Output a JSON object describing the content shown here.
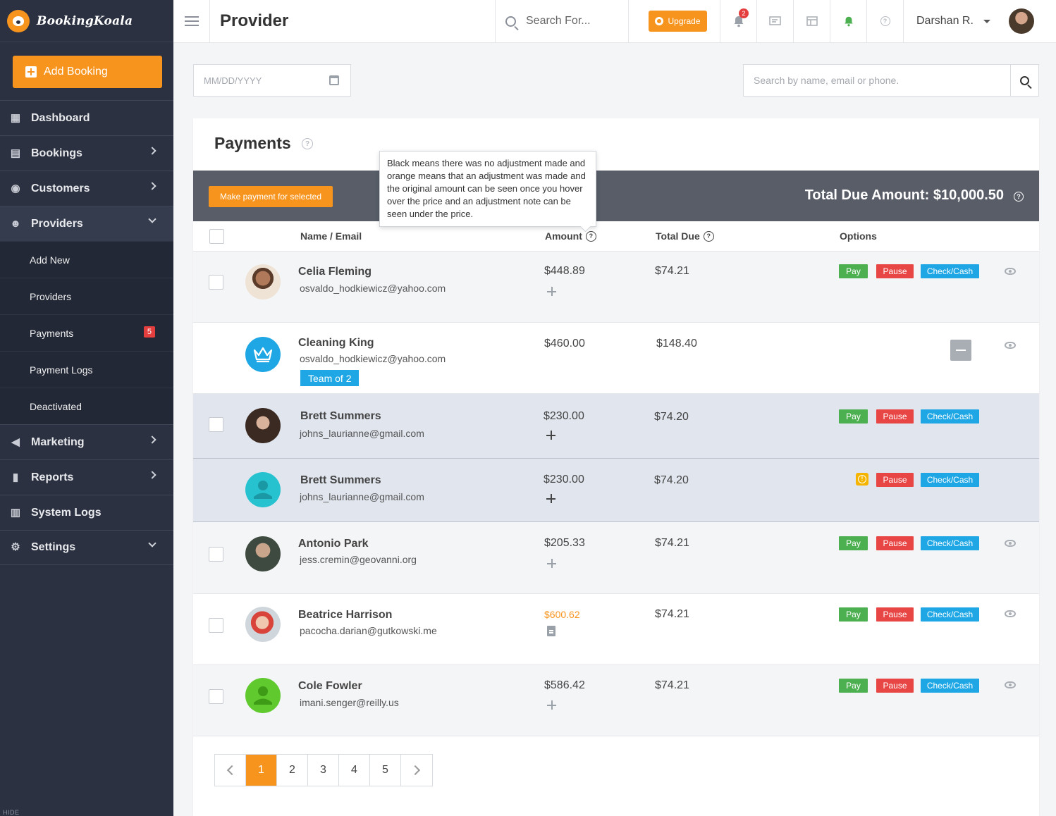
{
  "brand": {
    "name": "BookingKoala"
  },
  "sidebar": {
    "add_booking": "Add Booking",
    "items": [
      {
        "label": "Dashboard"
      },
      {
        "label": "Bookings"
      },
      {
        "label": "Customers"
      },
      {
        "label": "Providers"
      },
      {
        "label": "Marketing"
      },
      {
        "label": "Reports"
      },
      {
        "label": "System Logs"
      },
      {
        "label": "Settings"
      }
    ],
    "providers_sub": [
      {
        "label": "Add New"
      },
      {
        "label": "Providers"
      },
      {
        "label": "Payments",
        "badge": "5"
      },
      {
        "label": "Payment Logs"
      },
      {
        "label": "Deactivated"
      }
    ],
    "hide_label": "HIDE"
  },
  "header": {
    "title": "Provider",
    "search_placeholder": "Search For...",
    "upgrade_label": "Upgrade",
    "notification_count": "2",
    "user_name": "Darshan R."
  },
  "filters": {
    "date_placeholder": "MM/DD/YYYY",
    "search_placeholder": "Search by name, email or phone."
  },
  "payments": {
    "title": "Payments",
    "make_payment_label": "Make payment for selected",
    "total_due_label": "Total Due Amount: $10,000.50",
    "tooltip": "Black means there was no adjustment made and orange means that an adjustment was made and the original amount can be seen once you hover over the price and an adjustment note can be seen under the price.",
    "columns": {
      "name": "Name / Email",
      "amount": "Amount",
      "total_due": "Total Due",
      "options": "Options"
    },
    "buttons": {
      "pay": "Pay",
      "pause": "Pause",
      "check": "Check/Cash"
    },
    "rows": [
      {
        "name": "Celia Fleming",
        "email": "osvaldo_hodkiewicz@yahoo.com",
        "amount": "$448.89",
        "total_due": "$74.21"
      },
      {
        "name": "Cleaning King",
        "email": "osvaldo_hodkiewicz@yahoo.com",
        "amount": "$460.00",
        "total_due": "$148.40",
        "team": "Team of 2"
      },
      {
        "name": "Brett Summers",
        "email": "johns_laurianne@gmail.com",
        "amount": "$230.00",
        "total_due": "$74.20"
      },
      {
        "name": "Brett Summers",
        "email": "johns_laurianne@gmail.com",
        "amount": "$230.00",
        "total_due": "$74.20"
      },
      {
        "name": "Antonio Park",
        "email": "jess.cremin@geovanni.org",
        "amount": "$205.33",
        "total_due": "$74.21"
      },
      {
        "name": "Beatrice Harrison",
        "email": "pacocha.darian@gutkowski.me",
        "amount": "$600.62",
        "total_due": "$74.21"
      },
      {
        "name": "Cole Fowler",
        "email": "imani.senger@reilly.us",
        "amount": "$586.42",
        "total_due": "$74.21"
      }
    ]
  },
  "pagination": {
    "pages": [
      "1",
      "2",
      "3",
      "4",
      "5"
    ],
    "current": "1"
  },
  "colors": {
    "accent": "#f7941d",
    "sidebar": "#2b3141",
    "pay": "#4caf50",
    "pause": "#e84545",
    "check": "#1ea7e4"
  }
}
